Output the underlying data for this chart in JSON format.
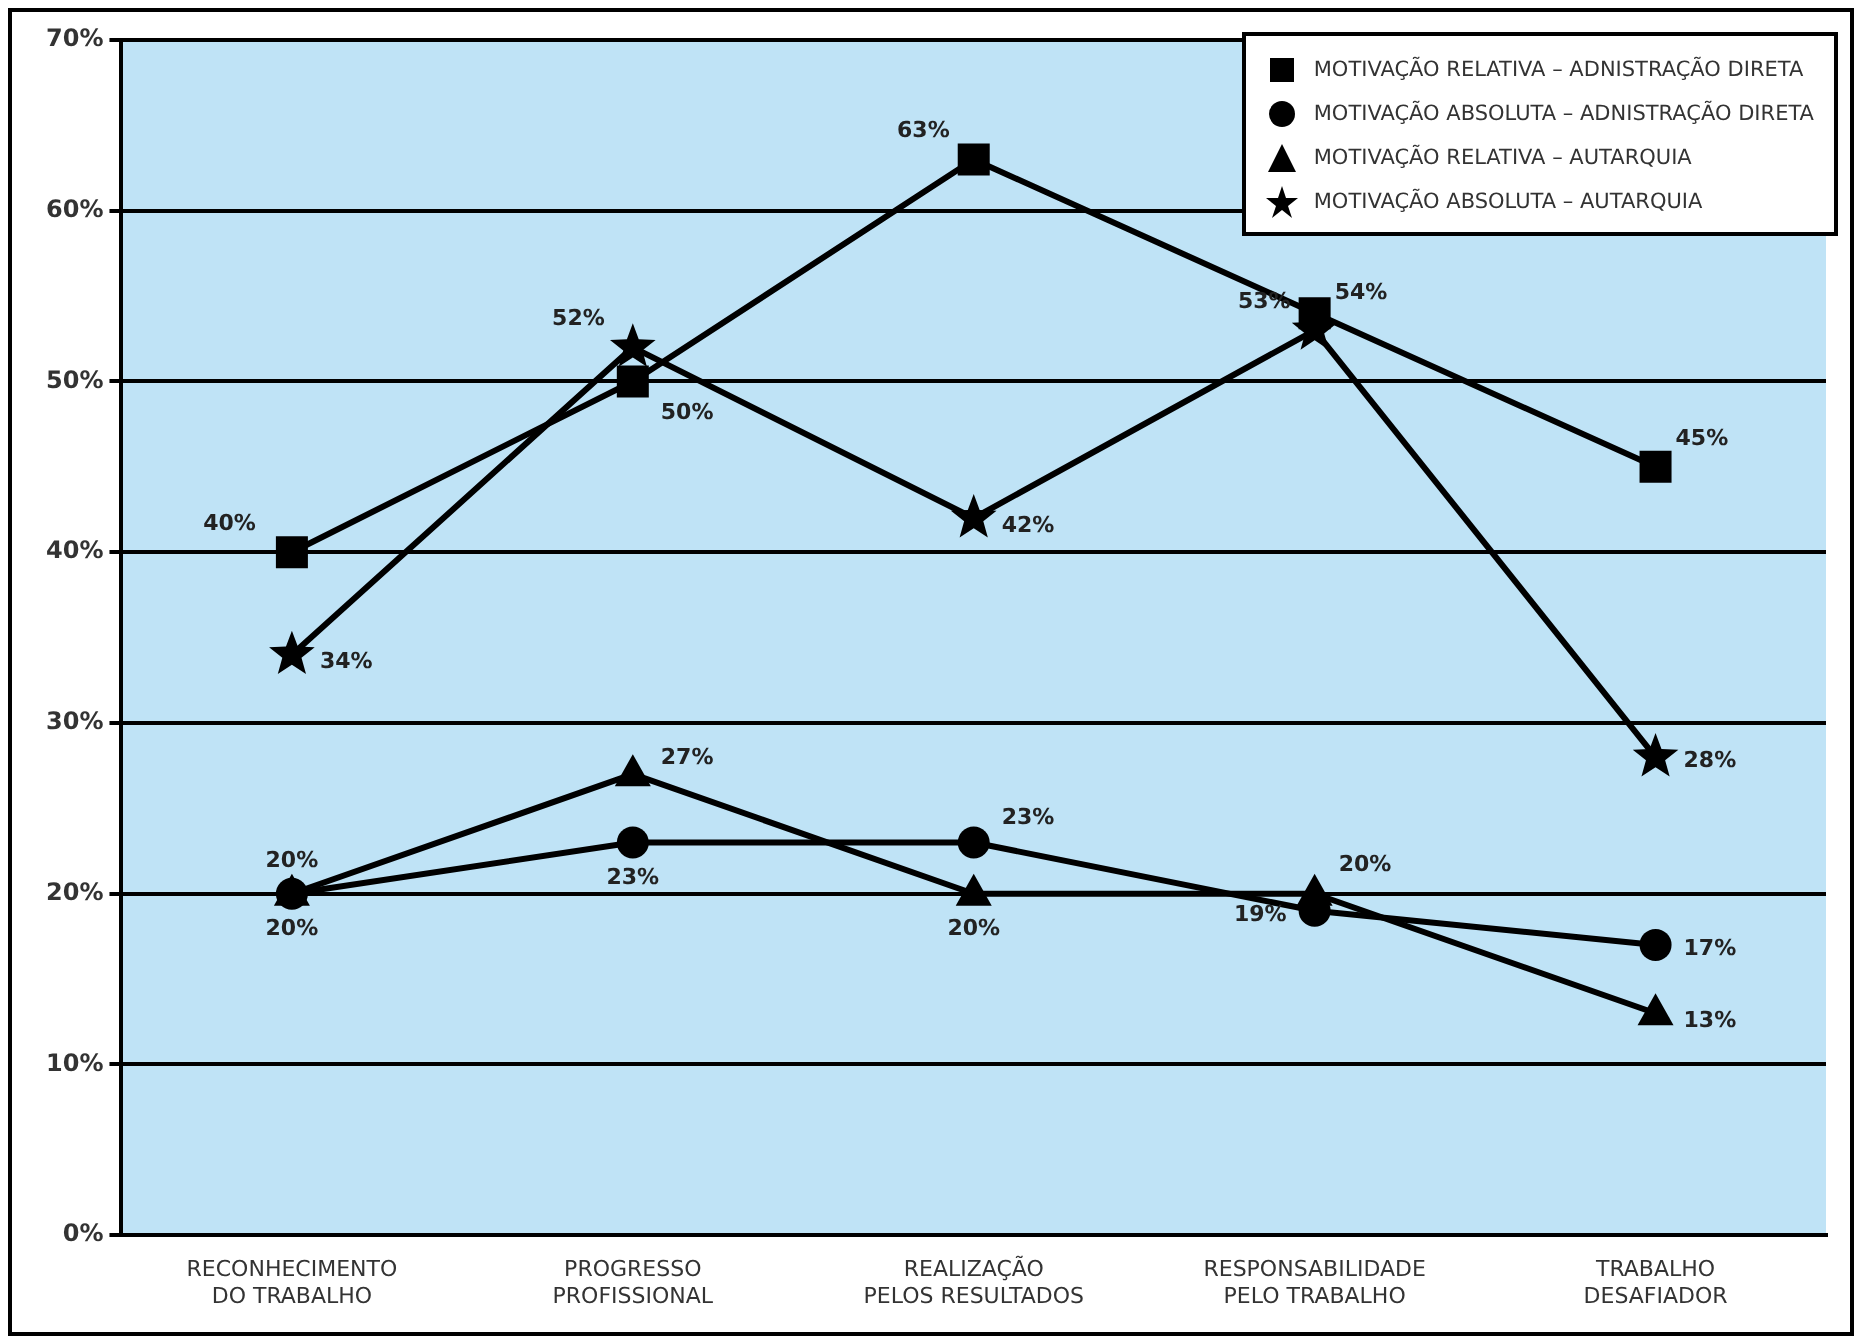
{
  "chart_data": {
    "type": "line",
    "categories": [
      "RECONHECIMENTO\nDO TRABALHO",
      "PROGRESSO\nPROFISSIONAL",
      "REALIZAÇÃO\nPELOS RESULTADOS",
      "RESPONSABILIDADE\nPELO TRABALHO",
      "TRABALHO\nDESAFIADOR"
    ],
    "series": [
      {
        "name": "MOTIVAÇÃO RELATIVA – ADNISTRAÇÃO DIRETA",
        "color": "#000000",
        "marker": "square",
        "values": [
          40,
          50,
          63,
          54,
          45
        ],
        "value_labels": [
          "40%",
          "50%",
          "63%",
          "54%",
          "45%"
        ]
      },
      {
        "name": "MOTIVAÇÃO ABSOLUTA – ADNISTRAÇÃO DIRETA",
        "color": "#000000",
        "marker": "circle",
        "values": [
          20,
          23,
          23,
          19,
          17
        ],
        "value_labels": [
          "20%",
          "23%",
          "23%",
          "19%",
          "17%"
        ]
      },
      {
        "name": "MOTIVAÇÃO  RELATIVA – AUTARQUIA",
        "color": "#000000",
        "marker": "triangle",
        "values": [
          20,
          27,
          20,
          20,
          13
        ],
        "value_labels": [
          "20%",
          "27%",
          "20%",
          "20%",
          "13%"
        ]
      },
      {
        "name": "MOTIVAÇÃO ABSOLUTA – AUTARQUIA",
        "color": "#000000",
        "marker": "star",
        "values": [
          34,
          52,
          42,
          53,
          28
        ],
        "value_labels": [
          "34%",
          "52%",
          "42%",
          "53%",
          "28%"
        ]
      }
    ],
    "ylim": [
      0,
      70
    ],
    "yticks": [
      {
        "value": 0,
        "label": "0%"
      },
      {
        "value": 10,
        "label": "10%"
      },
      {
        "value": 20,
        "label": "20%"
      },
      {
        "value": 30,
        "label": "30%"
      },
      {
        "value": 40,
        "label": "40%"
      },
      {
        "value": 50,
        "label": "50%"
      },
      {
        "value": 60,
        "label": "60%"
      },
      {
        "value": 70,
        "label": "70%"
      }
    ],
    "grid": "y",
    "legend": "top right",
    "line_style": "solid"
  }
}
